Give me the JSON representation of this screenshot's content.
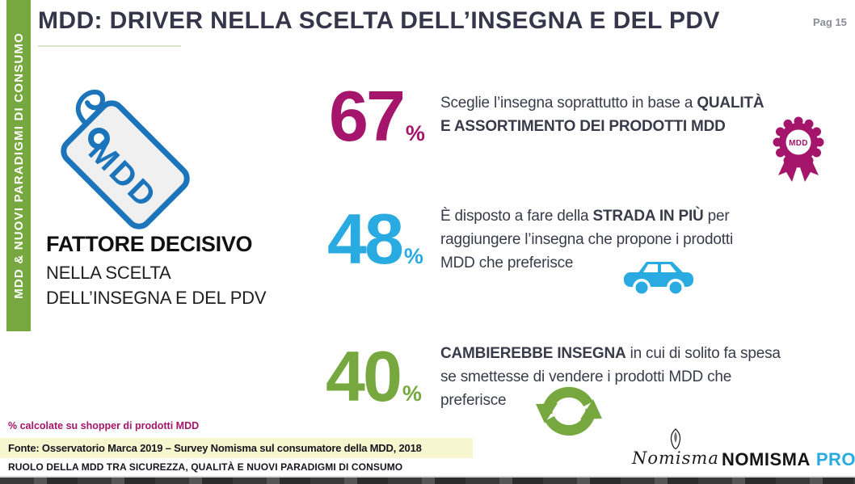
{
  "page": {
    "pag_label": "Pag 15"
  },
  "colors": {
    "magenta": "#A4156B",
    "blue": "#29ABE2",
    "green": "#76A83F",
    "navy": "#3A3B4A",
    "title": "#35364A",
    "gray": "#8A8B94",
    "yellow": "#F8F6CE",
    "tag-blue": "#1C75BB",
    "tag-fill": "#F0F0F1",
    "underline": "#D9E6C3"
  },
  "sidebar": {
    "label": "MDD & NUOVI PARADIGMI DI CONSUMO"
  },
  "title": "MDD: DRIVER NELLA SCELTA DELL’INSEGNA E DEL PDV",
  "tag": {
    "label": "MDD"
  },
  "left_block": {
    "heading": "FATTORE DECISIVO",
    "line1": "NELLA SCELTA",
    "line2": "DELL’INSEGNA E DEL PDV"
  },
  "stats": [
    {
      "value": "67",
      "percent": "%",
      "icon": "award-rosette-icon",
      "icon_label": "MDD",
      "lines": [
        [
          {
            "t": "Sceglie l’insegna soprattutto in base a ",
            "b": false
          },
          {
            "t": "QUALITÀ",
            "b": true
          }
        ],
        [
          {
            "t": "E ASSORTIMENTO DEI PRODOTTI MDD",
            "b": true
          }
        ]
      ]
    },
    {
      "value": "48",
      "percent": "%",
      "icon": "car-icon",
      "lines": [
        [
          {
            "t": "È disposto a fare della ",
            "b": false
          },
          {
            "t": "STRADA IN PIÙ",
            "b": true
          },
          {
            "t": " per",
            "b": false
          }
        ],
        [
          {
            "t": "raggiungere l’insegna che propone i prodotti",
            "b": false
          }
        ],
        [
          {
            "t": "MDD che preferisce",
            "b": false
          }
        ]
      ]
    },
    {
      "value": "40",
      "percent": "%",
      "icon": "recycle-arrows-icon",
      "lines": [
        [
          {
            "t": "CAMBIEREBBE INSEGNA",
            "b": true
          },
          {
            "t": " in cui di solito fa spesa",
            "b": false
          }
        ],
        [
          {
            "t": "se smettesse di vendere i prodotti MDD che",
            "b": false
          }
        ],
        [
          {
            "t": "preferisce",
            "b": false
          }
        ]
      ]
    }
  ],
  "footer": {
    "footnote": "% calcolate su shopper di prodotti MDD",
    "source": "Fonte: Osservatorio Marca 2019 – Survey Nomisma sul consumatore della MDD, 2018",
    "section_title": "RUOLO DELLA MDD TRA SICUREZZA, QUALITÀ E NUOVI PARADIGMI DI CONSUMO"
  },
  "brand": {
    "script": "Nomisma",
    "name": "NOMISMA",
    "suffix": "PRO"
  }
}
